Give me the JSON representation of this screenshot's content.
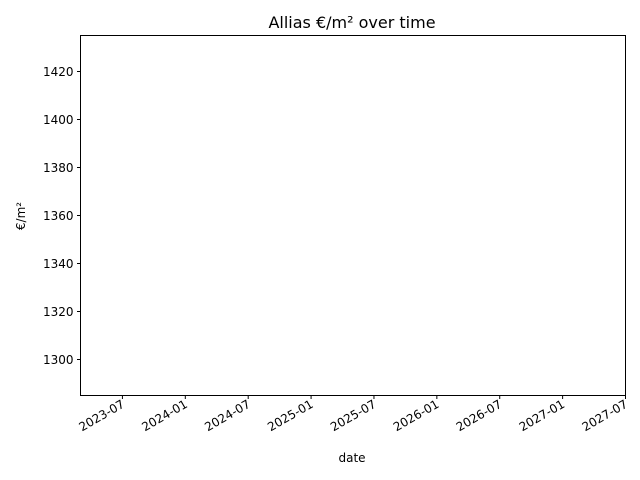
{
  "chart_data": {
    "type": "line",
    "title": "Allias €/m² over time",
    "xlabel": "date",
    "ylabel": "€/m²",
    "x_ticks": [
      "2023-07",
      "2024-01",
      "2024-07",
      "2025-01",
      "2025-07",
      "2026-01",
      "2026-07",
      "2027-01",
      "2027-07"
    ],
    "y_ticks": [
      1300,
      1320,
      1340,
      1360,
      1380,
      1400,
      1420
    ],
    "ylim": [
      1285,
      1435
    ],
    "xlim": [
      "2023-03",
      "2027-07"
    ],
    "grid": false,
    "series": [
      {
        "x": [],
        "y": []
      }
    ]
  }
}
